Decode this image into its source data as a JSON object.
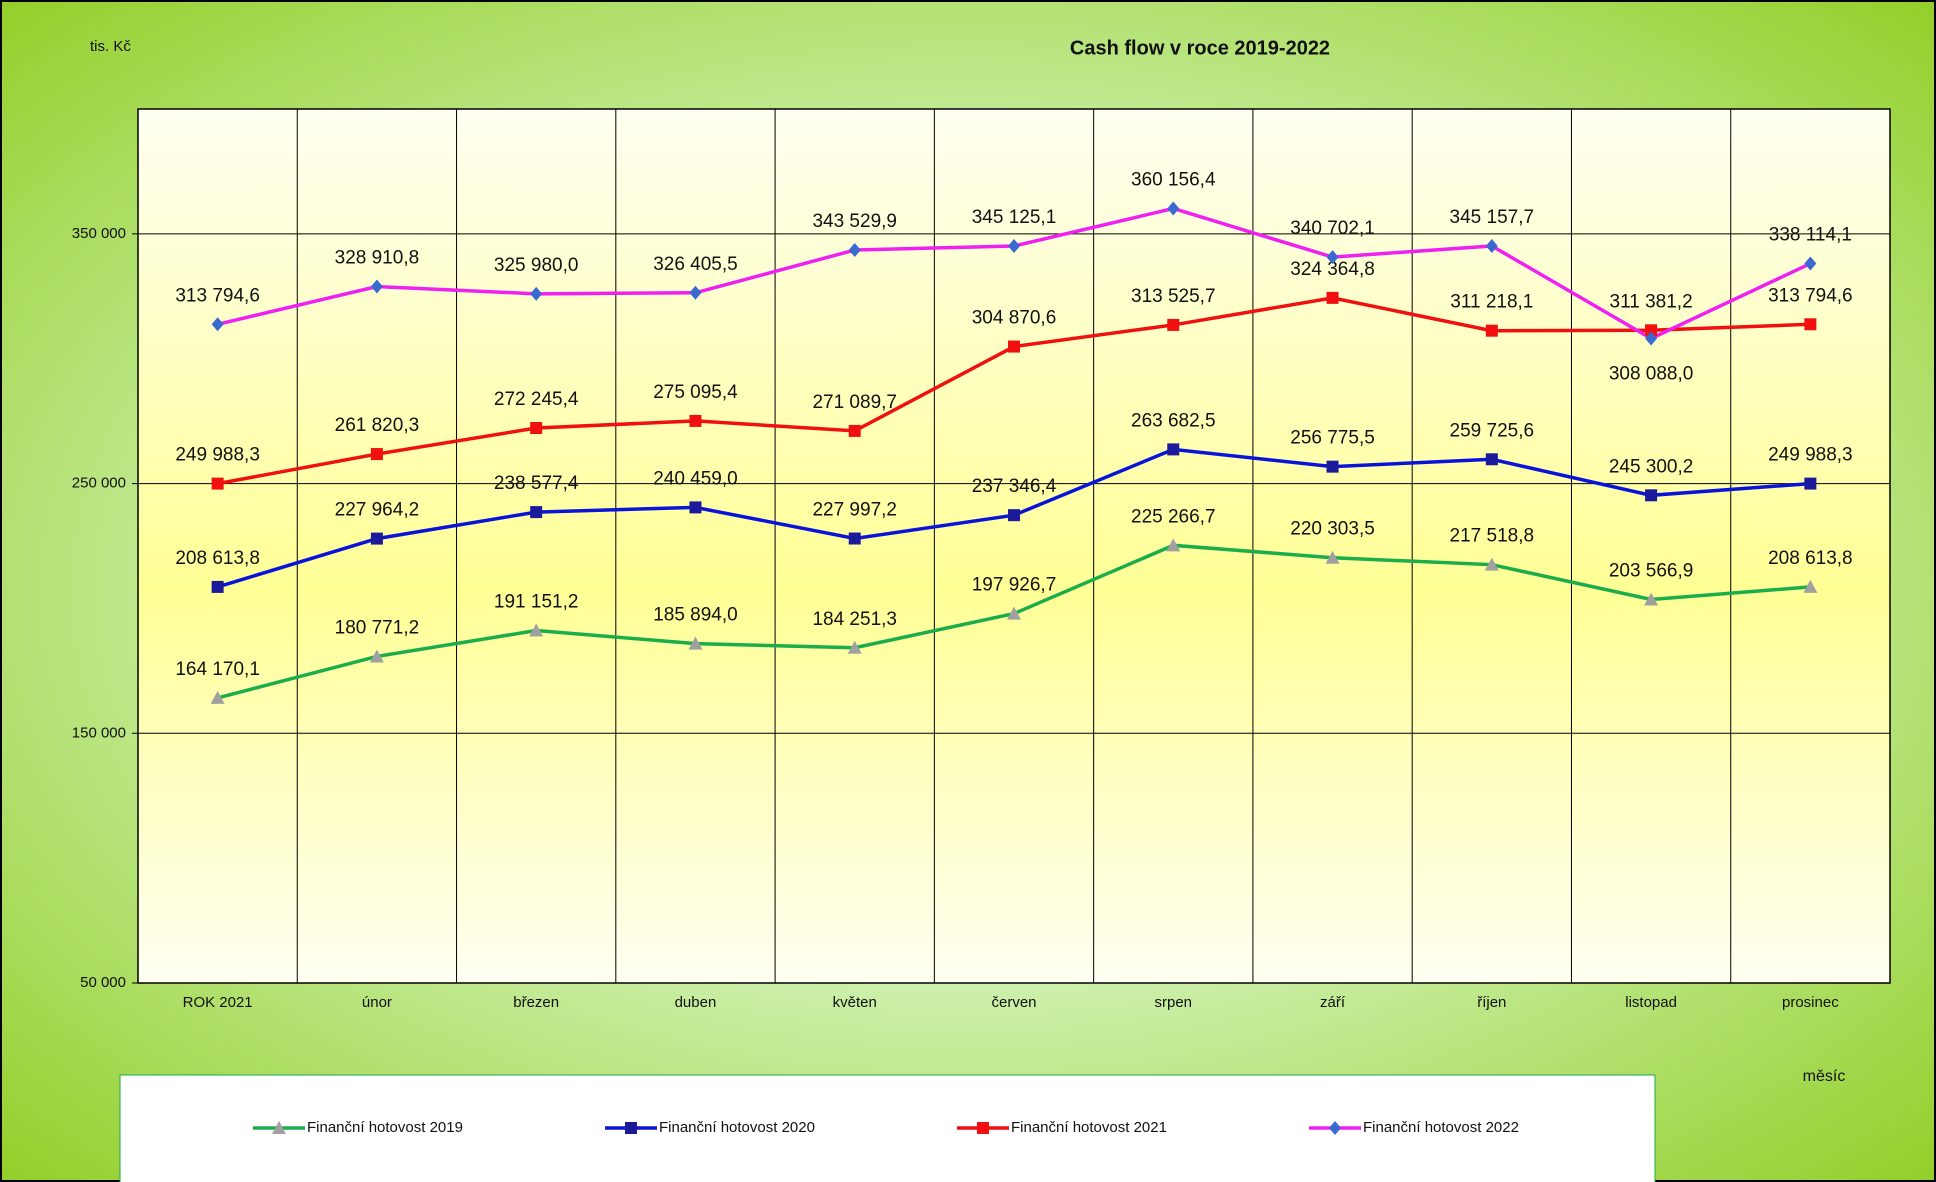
{
  "chart_data": {
    "type": "line",
    "title": "Cash flow v roce 2019-2022",
    "y_unit": "tis. Kč",
    "x_label": "měsíc",
    "categories": [
      "ROK 2021",
      "únor",
      "březen",
      "duben",
      "květen",
      "červen",
      "srpen",
      "září",
      "říjen",
      "listopad",
      "prosinec"
    ],
    "ylim": [
      50000,
      400000
    ],
    "yticks": [
      {
        "value": 50000,
        "label": "50 000"
      },
      {
        "value": 150000,
        "label": "150 000"
      },
      {
        "value": 250000,
        "label": "250 000"
      },
      {
        "value": 350000,
        "label": "350 000"
      }
    ],
    "grid": true,
    "legend": "bottom",
    "series": [
      {
        "name": "Finanční hotovost 2019",
        "color": "#1aad4a",
        "marker": "triangle",
        "marker_color": "#a0a0a0",
        "values": [
          164170.1,
          180771.2,
          191151.2,
          185894.0,
          184251.3,
          197926.7,
          225266.7,
          220303.5,
          217518.8,
          203566.9,
          208613.8
        ],
        "value_labels": [
          "164 170,1",
          "180 771,2",
          "191 151,2",
          "185 894,0",
          "184 251,3",
          "197 926,7",
          "225 266,7",
          "220 303,5",
          "217 518,8",
          "203 566,9",
          "208 613,8"
        ]
      },
      {
        "name": "Finanční hotovost 2020",
        "color": "#0a14d8",
        "marker": "square",
        "marker_color": "#1a1a9a",
        "values": [
          208613.8,
          227964.2,
          238577.4,
          240459.0,
          227997.2,
          237346.4,
          263682.5,
          256775.5,
          259725.6,
          245300.2,
          249988.3
        ],
        "value_labels": [
          "208 613,8",
          "227 964,2",
          "238 577,4",
          "240 459,0",
          "227 997,2",
          "237 346,4",
          "263 682,5",
          "256 775,5",
          "259 725,6",
          "245 300,2",
          "249 988,3"
        ]
      },
      {
        "name": "Finanční hotovost 2021",
        "color": "#f01010",
        "marker": "square",
        "marker_color": "#f01010",
        "values": [
          249988.3,
          261820.3,
          272245.4,
          275095.4,
          271089.7,
          304870.6,
          313525.7,
          324364.8,
          311218.1,
          311381.2,
          313794.6
        ],
        "value_labels": [
          "249 988,3",
          "261 820,3",
          "272 245,4",
          "275 095,4",
          "271 089,7",
          "304 870,6",
          "313 525,7",
          "324 364,8",
          "311 218,1",
          "311 381,2",
          "313 794,6"
        ]
      },
      {
        "name": "Finanční hotovost 2022",
        "color": "#f020f0",
        "marker": "diamond",
        "marker_color": "#3a6ad0",
        "values": [
          313794.6,
          328910.8,
          325980.0,
          326405.5,
          343529.9,
          345125.1,
          360156.4,
          340702.1,
          345157.7,
          308088.0,
          338114.1
        ],
        "value_labels": [
          "313 794,6",
          "328 910,8",
          "325 980,0",
          "326 405,5",
          "343 529,9",
          "345 125,1",
          "360 156,4",
          "340 702,1",
          "345 157,7",
          "308 088,0",
          "338 114,1"
        ]
      }
    ]
  }
}
